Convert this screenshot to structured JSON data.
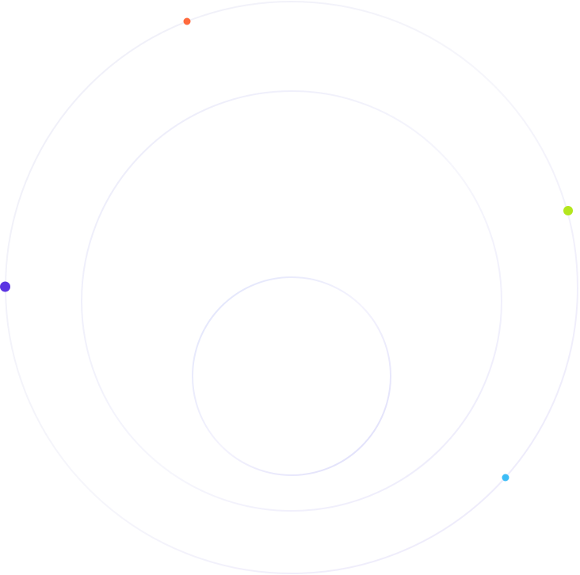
{
  "colors": {
    "background": "#ffffff",
    "ring": "#e6e4fb",
    "ring_inner": "#dfe2fb",
    "dot_orange": "#ff6a3d",
    "dot_green": "#b4e61e",
    "dot_purple": "#5b35e2",
    "dot_blue": "#3cbcf6"
  }
}
